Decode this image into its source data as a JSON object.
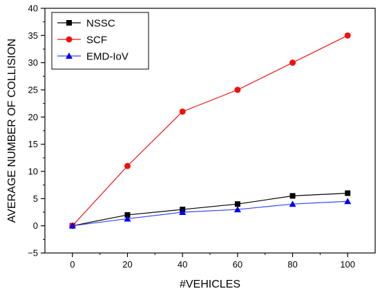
{
  "chart_data": {
    "type": "line",
    "title": "",
    "xlabel": "#VEHICLES",
    "ylabel": "AVERAGE NUMBER OF COLLISION",
    "xlim": [
      -10,
      110
    ],
    "ylim": [
      -5,
      40
    ],
    "x_ticks": [
      0,
      20,
      40,
      60,
      80,
      100
    ],
    "y_ticks": [
      -5,
      0,
      5,
      10,
      15,
      20,
      25,
      30,
      35,
      40
    ],
    "x": [
      0,
      20,
      40,
      60,
      80,
      100
    ],
    "legend_position": "top-left",
    "grid": false,
    "series": [
      {
        "name": "NSSC",
        "values": [
          0,
          2,
          3,
          4,
          5.5,
          6
        ],
        "color": "#000000",
        "line_color": "#000000",
        "marker": "square"
      },
      {
        "name": "SCF",
        "values": [
          0,
          11,
          21,
          25,
          30,
          35
        ],
        "color": "#ee1111",
        "line_color": "#ee1111",
        "marker": "circle"
      },
      {
        "name": "EMD-IoV",
        "values": [
          0,
          1.3,
          2.5,
          3,
          4,
          4.5
        ],
        "color": "#0000ee",
        "line_color": "#3344ff",
        "marker": "triangle"
      }
    ]
  }
}
